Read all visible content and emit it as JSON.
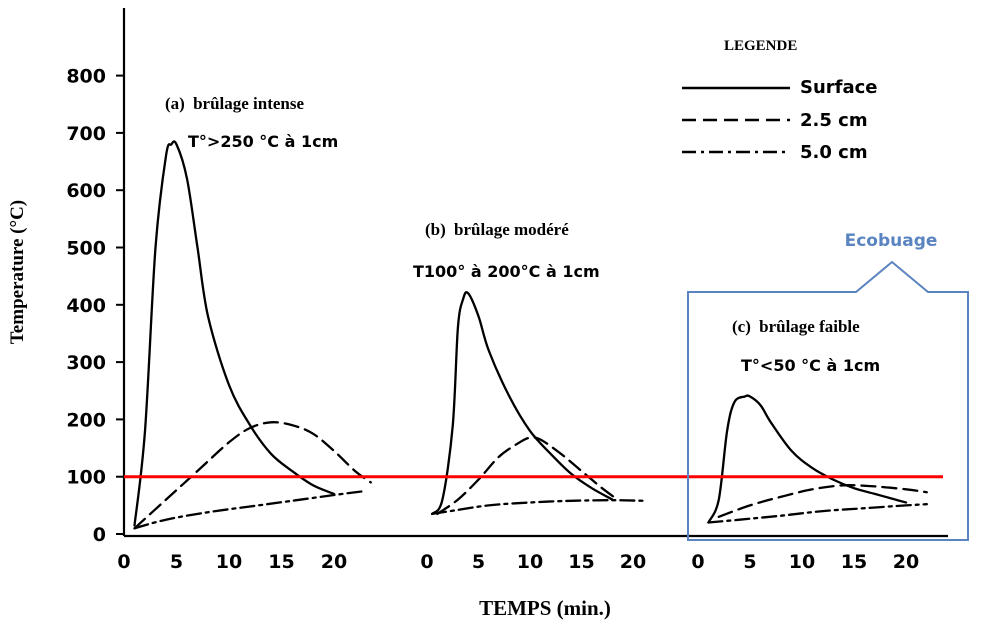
{
  "chart_data": {
    "type": "line",
    "ylabel": "Temperature (°C)",
    "xlabel": "TEMPS (min.)",
    "ylim": [
      0,
      800
    ],
    "yticks": [
      0,
      100,
      200,
      300,
      400,
      500,
      600,
      700,
      800
    ],
    "xticks": [
      0,
      5,
      10,
      15,
      20
    ],
    "threshold": {
      "value": 100,
      "color": "#ff0000"
    },
    "legend": {
      "title": "LEGENDE",
      "placement": "top-right",
      "items": [
        {
          "label": "Surface",
          "style": "solid"
        },
        {
          "label": "2.5 cm",
          "style": "dashed"
        },
        {
          "label": "5.0 cm",
          "style": "dashdot"
        }
      ]
    },
    "callout": {
      "label": "Ecobuage",
      "color": "#5a84c0",
      "target_panel": "c"
    },
    "panels": [
      {
        "id": "a",
        "letter": "(a)",
        "title": "brûlage intense",
        "subtitle": "T°>250 °C à 1cm",
        "series": [
          {
            "name": "Surface",
            "style": "solid",
            "x": [
              1,
              2,
              3,
              4,
              4.5,
              5,
              6,
              7,
              8,
              10,
              12,
              14,
              16,
              18,
              20
            ],
            "y": [
              15,
              180,
              500,
              660,
              680,
              680,
              620,
              500,
              380,
              260,
              190,
              140,
              110,
              85,
              70
            ]
          },
          {
            "name": "2.5 cm",
            "style": "dashed",
            "x": [
              1,
              4,
              7,
              10,
              12,
              14,
              16,
              18,
              20,
              22,
              23.5
            ],
            "y": [
              10,
              60,
              110,
              160,
              185,
              195,
              190,
              175,
              145,
              110,
              90
            ]
          },
          {
            "name": "5.0 cm",
            "style": "dashdot",
            "x": [
              1,
              4,
              8,
              12,
              16,
              20,
              23
            ],
            "y": [
              10,
              25,
              38,
              48,
              58,
              68,
              75
            ]
          }
        ]
      },
      {
        "id": "b",
        "letter": "(b)",
        "title": "brûlage modéré",
        "subtitle": "T100° à 200°C à 1cm",
        "series": [
          {
            "name": "Surface",
            "style": "solid",
            "x": [
              0.5,
              1.5,
              2.5,
              3,
              3.5,
              4,
              5,
              6,
              8,
              10,
              12,
              14,
              16,
              18
            ],
            "y": [
              35,
              60,
              190,
              360,
              410,
              420,
              380,
              320,
              240,
              180,
              140,
              105,
              80,
              60
            ]
          },
          {
            "name": "2.5 cm",
            "style": "dashed",
            "x": [
              1,
              3,
              5,
              7,
              9,
              10,
              11,
              13,
              15,
              17,
              18.5
            ],
            "y": [
              35,
              60,
              95,
              135,
              160,
              168,
              165,
              140,
              110,
              80,
              60
            ]
          },
          {
            "name": "5.0 cm",
            "style": "dashdot",
            "x": [
              0.5,
              3,
              6,
              10,
              14,
              18,
              21
            ],
            "y": [
              35,
              42,
              50,
              55,
              58,
              59,
              58
            ]
          }
        ]
      },
      {
        "id": "c",
        "letter": "(c)",
        "title": "brûlage faible",
        "subtitle": "T°<50 °C à 1cm",
        "series": [
          {
            "name": "Surface",
            "style": "solid",
            "x": [
              1,
              2,
              2.8,
              3.5,
              4.5,
              5,
              6,
              7,
              9,
              11,
              13,
              15,
              17,
              19,
              20
            ],
            "y": [
              20,
              60,
              180,
              230,
              240,
              240,
              225,
              195,
              145,
              115,
              95,
              80,
              70,
              60,
              55
            ]
          },
          {
            "name": "2.5 cm",
            "style": "dashed",
            "x": [
              2,
              5,
              8,
              11,
              14,
              17,
              20,
              22
            ],
            "y": [
              30,
              50,
              65,
              78,
              85,
              83,
              78,
              73
            ]
          },
          {
            "name": "5.0 cm",
            "style": "dashdot",
            "x": [
              1,
              4,
              8,
              12,
              16,
              20,
              22
            ],
            "y": [
              20,
              25,
              32,
              40,
              45,
              50,
              52
            ]
          }
        ]
      }
    ]
  }
}
